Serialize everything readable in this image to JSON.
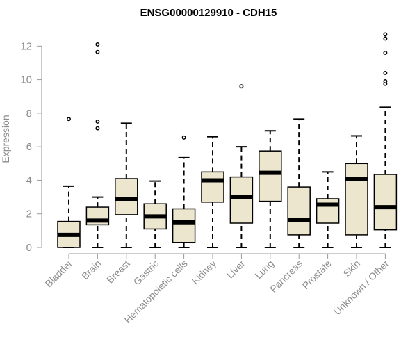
{
  "chart_data": {
    "type": "boxplot",
    "title": "ENSG00000129910 - CDH15",
    "xlabel": "",
    "ylabel": "Expression",
    "ylim": [
      0,
      12.8
    ],
    "yticks": [
      0,
      2,
      4,
      6,
      8,
      10,
      12
    ],
    "categories": [
      "Bladder",
      "Brain",
      "Breast",
      "Gastric",
      "Hematopoietic cells",
      "Kidney",
      "Liver",
      "Lung",
      "Pancreas",
      "Prostate",
      "Skin",
      "Unknown / Other"
    ],
    "boxes": [
      {
        "category": "Bladder",
        "whisker_low": 0.0,
        "q1": 0.0,
        "median": 0.75,
        "q3": 1.55,
        "whisker_high": 3.65,
        "outliers": [
          7.65
        ]
      },
      {
        "category": "Brain",
        "whisker_low": 0.0,
        "q1": 1.35,
        "median": 1.6,
        "q3": 2.4,
        "whisker_high": 3.0,
        "outliers": [
          7.1,
          7.5,
          11.65,
          12.1
        ]
      },
      {
        "category": "Breast",
        "whisker_low": 0.0,
        "q1": 1.95,
        "median": 2.9,
        "q3": 4.1,
        "whisker_high": 7.4,
        "outliers": []
      },
      {
        "category": "Gastric",
        "whisker_low": 0.0,
        "q1": 1.1,
        "median": 1.85,
        "q3": 2.6,
        "whisker_high": 3.95,
        "outliers": []
      },
      {
        "category": "Hematopoietic cells",
        "whisker_low": 0.0,
        "q1": 0.3,
        "median": 1.5,
        "q3": 2.3,
        "whisker_high": 5.35,
        "outliers": [
          6.55
        ]
      },
      {
        "category": "Kidney",
        "whisker_low": 0.0,
        "q1": 2.7,
        "median": 4.0,
        "q3": 4.5,
        "whisker_high": 6.6,
        "outliers": []
      },
      {
        "category": "Liver",
        "whisker_low": 0.0,
        "q1": 1.45,
        "median": 3.0,
        "q3": 4.2,
        "whisker_high": 6.0,
        "outliers": [
          9.6
        ]
      },
      {
        "category": "Lung",
        "whisker_low": 0.0,
        "q1": 2.75,
        "median": 4.45,
        "q3": 5.75,
        "whisker_high": 6.95,
        "outliers": []
      },
      {
        "category": "Pancreas",
        "whisker_low": 0.0,
        "q1": 0.75,
        "median": 1.65,
        "q3": 3.6,
        "whisker_high": 7.65,
        "outliers": []
      },
      {
        "category": "Prostate",
        "whisker_low": 0.0,
        "q1": 1.45,
        "median": 2.55,
        "q3": 2.9,
        "whisker_high": 4.5,
        "outliers": []
      },
      {
        "category": "Skin",
        "whisker_low": 0.0,
        "q1": 0.75,
        "median": 4.1,
        "q3": 5.0,
        "whisker_high": 6.65,
        "outliers": []
      },
      {
        "category": "Unknown / Other",
        "whisker_low": 0.0,
        "q1": 1.05,
        "median": 2.4,
        "q3": 4.35,
        "whisker_high": 8.35,
        "outliers": [
          9.75,
          9.9,
          10.4,
          11.6,
          12.45,
          12.7
        ]
      }
    ],
    "grid": false,
    "colors": {
      "box_fill": "#ede6cf",
      "box_stroke": "#000000",
      "axis": "#9a9a9a",
      "text": "#8c8c8c",
      "title": "#000000"
    }
  }
}
